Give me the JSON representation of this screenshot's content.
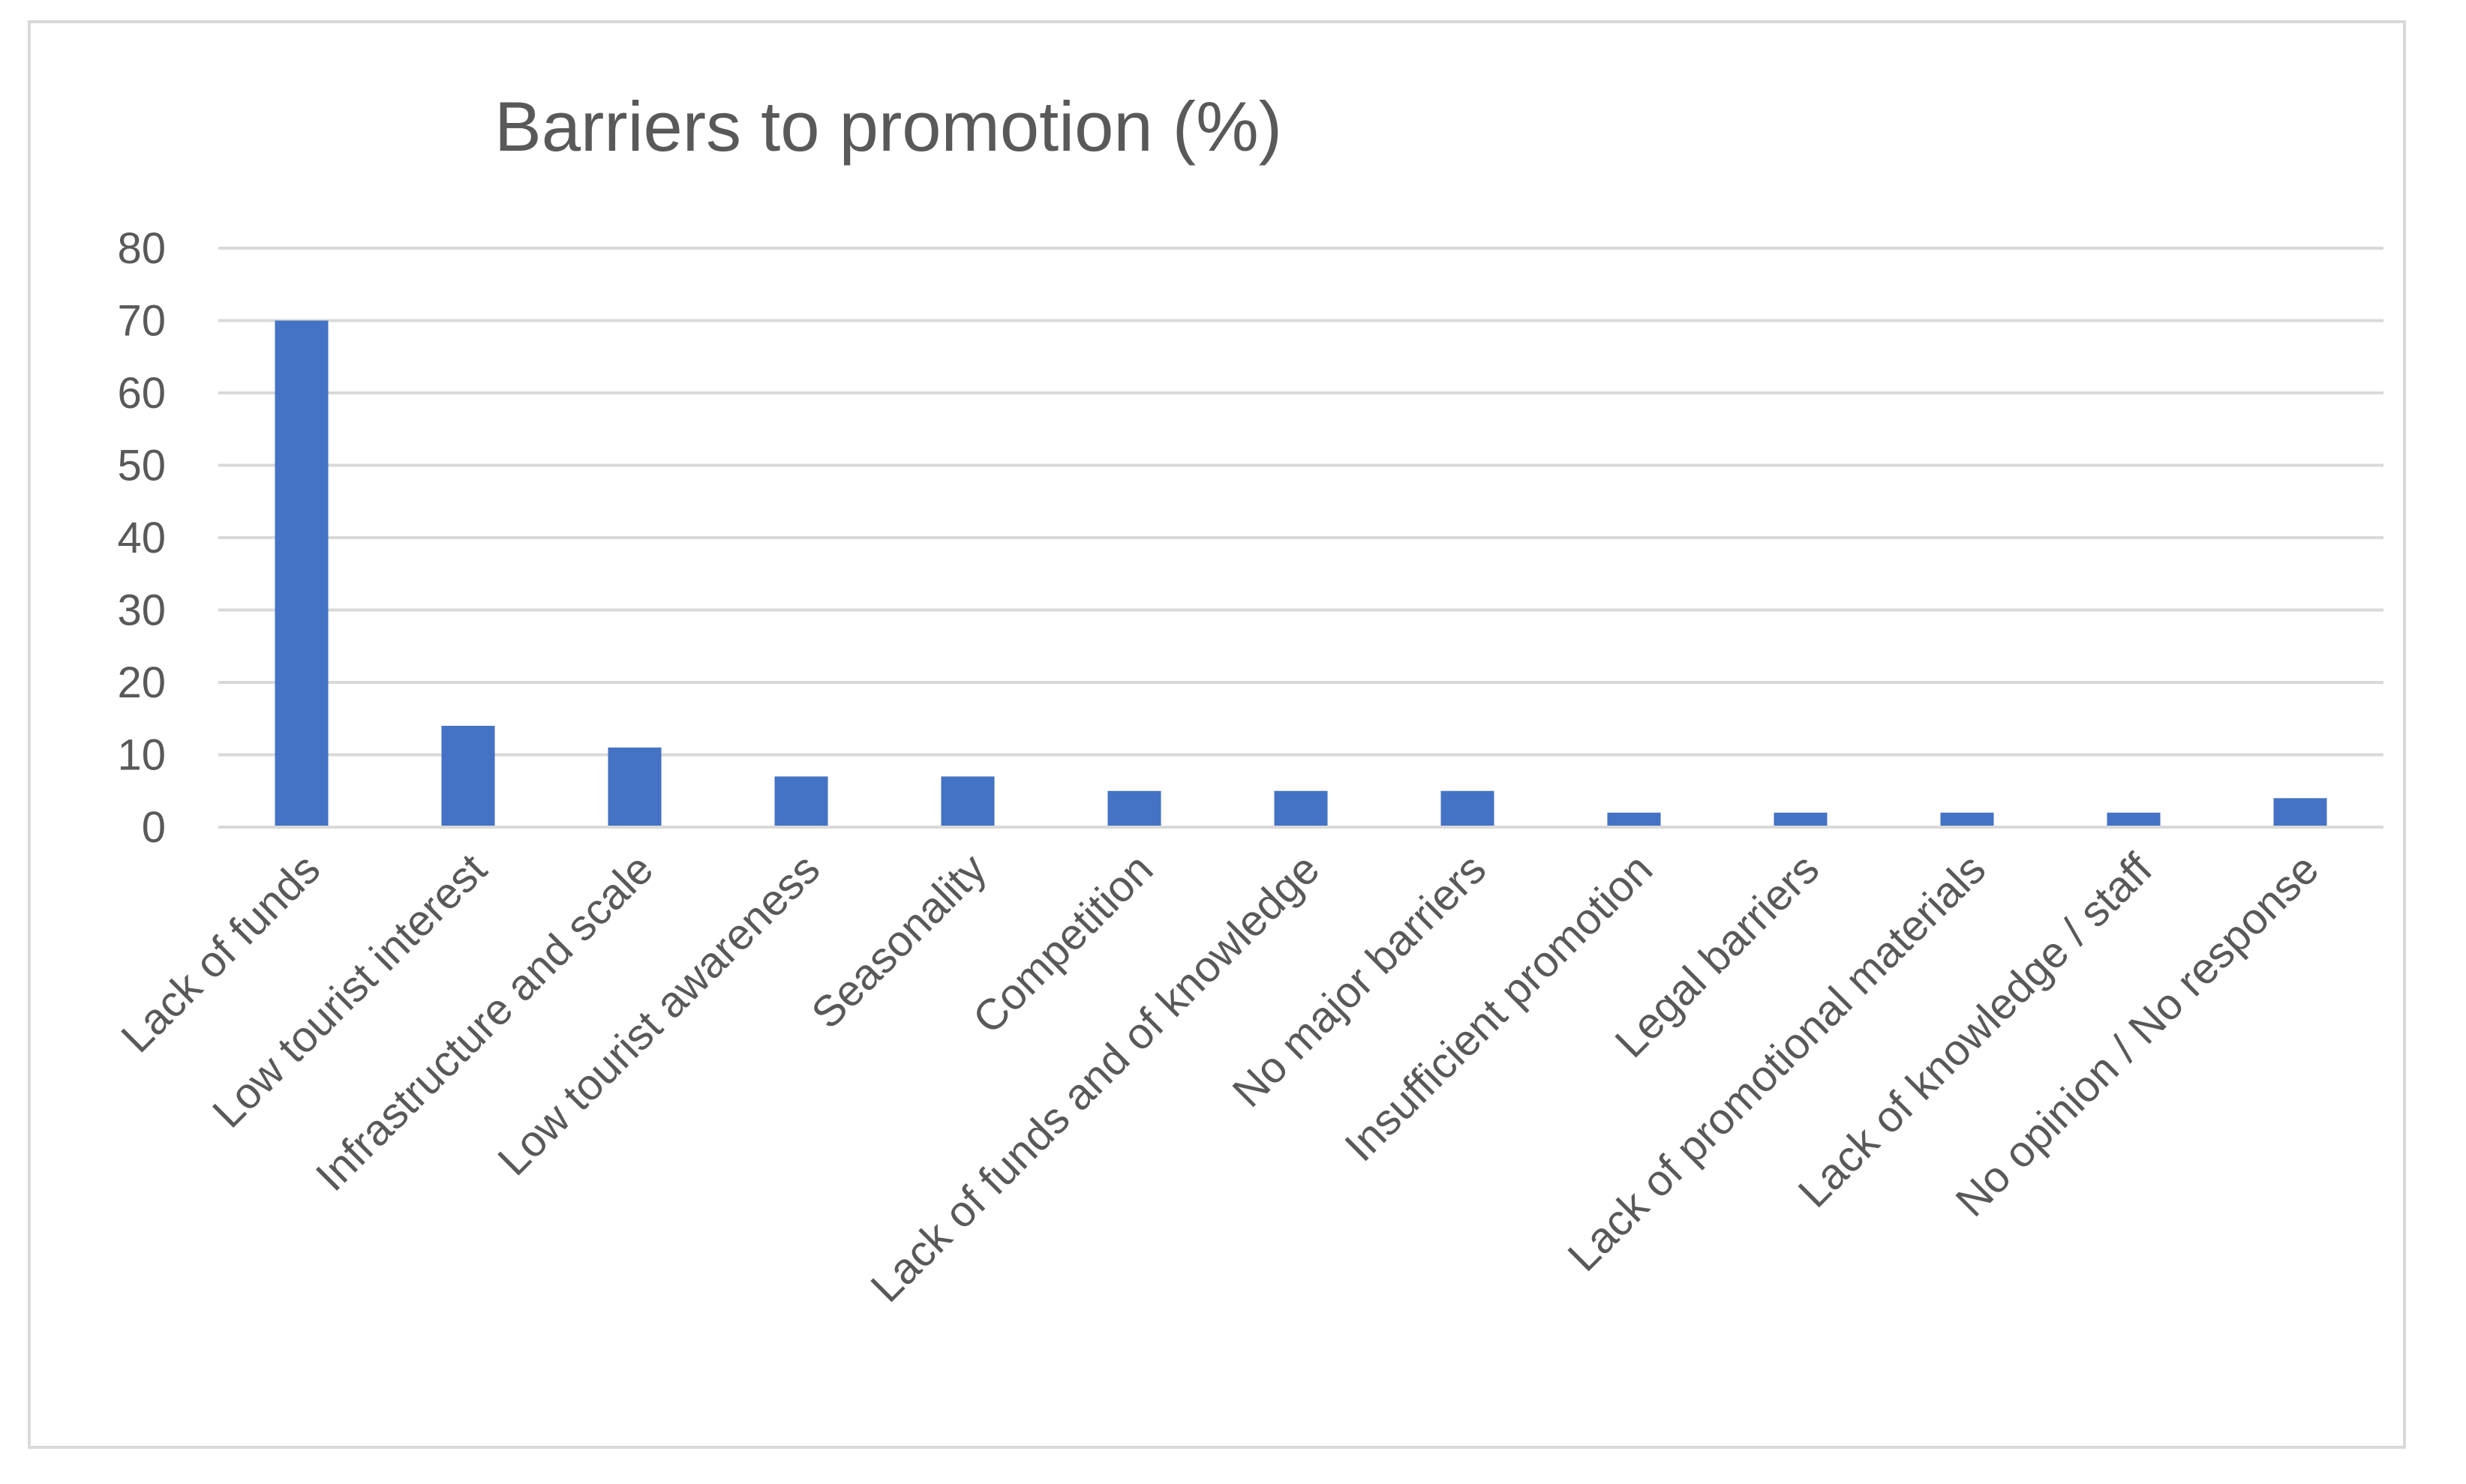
{
  "chart_data": {
    "type": "bar",
    "title": "Barriers to promotion (%)",
    "xlabel": "",
    "ylabel": "",
    "ylim": [
      0,
      80
    ],
    "yticks": [
      0,
      10,
      20,
      30,
      40,
      50,
      60,
      70,
      80
    ],
    "grid": true,
    "legend": "none",
    "bar_color": "#4472c4",
    "categories": [
      "Lack of funds",
      "Low tourist interest",
      "Infrastructure and scale",
      "Low tourist awareness",
      "Seasonality",
      "Competition",
      "Lack of funds and of knowledge",
      "No major barriers",
      "Insufficient promotion",
      "Legal barriers",
      "Lack of promotional materials",
      "Lack of knowledge / staff",
      "No opinion / No response"
    ],
    "values": [
      70,
      14,
      11,
      7,
      7,
      5,
      5,
      5,
      2,
      2,
      2,
      2,
      4
    ]
  }
}
